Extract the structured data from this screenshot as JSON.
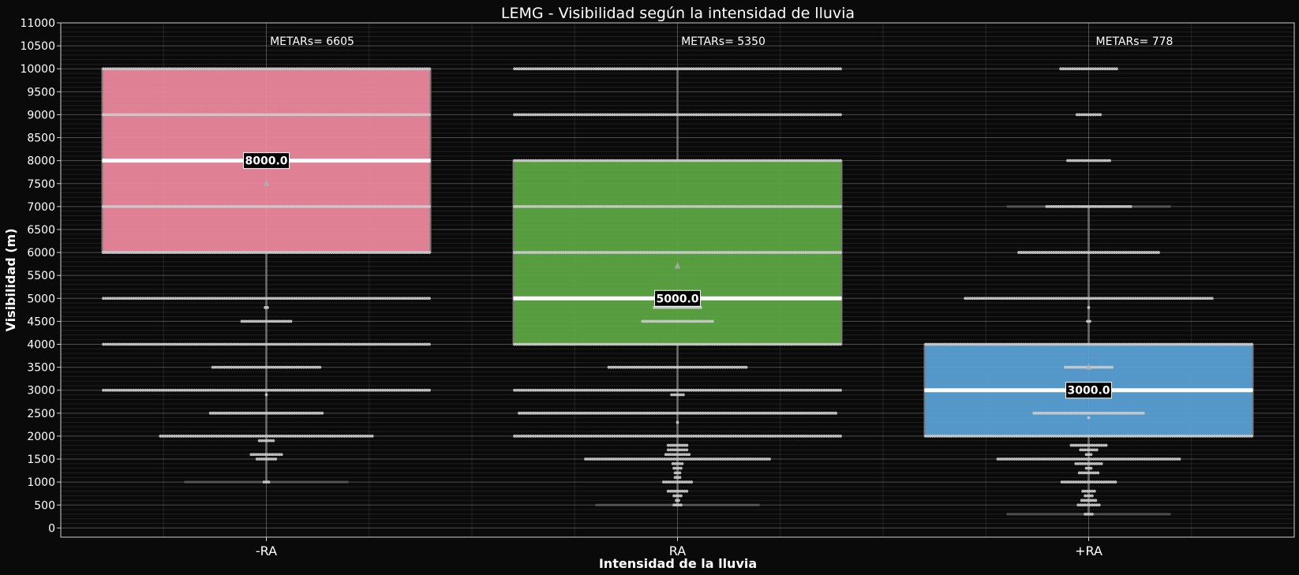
{
  "chart_data": {
    "type": "box",
    "title": "LEMG - Visibilidad según la intensidad de lluvia",
    "xlabel": "Intensidad de la lluvia",
    "ylabel": "Visibilidad (m)",
    "ylim": [
      -200,
      11000
    ],
    "yticks": [
      0,
      500,
      1000,
      1500,
      2000,
      2500,
      3000,
      3500,
      4000,
      4500,
      5000,
      5500,
      6000,
      6500,
      7000,
      7500,
      8000,
      8500,
      9000,
      9500,
      10000,
      10500,
      11000
    ],
    "grid": true,
    "categories": [
      "-RA",
      "RA",
      "+RA"
    ],
    "series": [
      {
        "category": "-RA",
        "color": "#f08aa0",
        "q1": 6000,
        "median": 8000,
        "q3": 10000,
        "whisker_low": 1000,
        "whisker_high": 10000,
        "mean": 7500,
        "median_label": "8000.0",
        "count_label": "METARs= 6605",
        "swarm": [
          {
            "v": 10000,
            "n": 141
          },
          {
            "v": 9000,
            "n": 141
          },
          {
            "v": 8000,
            "n": 141
          },
          {
            "v": 7000,
            "n": 141
          },
          {
            "v": 6000,
            "n": 141
          },
          {
            "v": 5000,
            "n": 141
          },
          {
            "v": 4800,
            "n": 2
          },
          {
            "v": 4500,
            "n": 22
          },
          {
            "v": 4000,
            "n": 141
          },
          {
            "v": 3500,
            "n": 47
          },
          {
            "v": 3000,
            "n": 141
          },
          {
            "v": 2900,
            "n": 1
          },
          {
            "v": 2500,
            "n": 49
          },
          {
            "v": 2000,
            "n": 92
          },
          {
            "v": 1900,
            "n": 7
          },
          {
            "v": 1600,
            "n": 14
          },
          {
            "v": 1500,
            "n": 9
          },
          {
            "v": 1000,
            "n": 3
          }
        ]
      },
      {
        "category": "RA",
        "color": "#5fa845",
        "q1": 4000,
        "median": 5000,
        "q3": 8000,
        "whisker_low": 500,
        "whisker_high": 10000,
        "mean": 5700,
        "median_label": "5000.0",
        "count_label": "METARs= 5350",
        "swarm": [
          {
            "v": 10000,
            "n": 141
          },
          {
            "v": 9000,
            "n": 141
          },
          {
            "v": 8000,
            "n": 141
          },
          {
            "v": 7000,
            "n": 141
          },
          {
            "v": 6000,
            "n": 141
          },
          {
            "v": 5000,
            "n": 141
          },
          {
            "v": 4800,
            "n": 21
          },
          {
            "v": 4500,
            "n": 31
          },
          {
            "v": 4000,
            "n": 141
          },
          {
            "v": 3500,
            "n": 60
          },
          {
            "v": 3000,
            "n": 141
          },
          {
            "v": 2900,
            "n": 6
          },
          {
            "v": 2500,
            "n": 137
          },
          {
            "v": 2300,
            "n": 1
          },
          {
            "v": 2000,
            "n": 141
          },
          {
            "v": 1800,
            "n": 9
          },
          {
            "v": 1700,
            "n": 9
          },
          {
            "v": 1600,
            "n": 11
          },
          {
            "v": 1500,
            "n": 80
          },
          {
            "v": 1400,
            "n": 5
          },
          {
            "v": 1300,
            "n": 4
          },
          {
            "v": 1200,
            "n": 3
          },
          {
            "v": 1100,
            "n": 3
          },
          {
            "v": 1000,
            "n": 13
          },
          {
            "v": 800,
            "n": 9
          },
          {
            "v": 700,
            "n": 4
          },
          {
            "v": 600,
            "n": 2
          },
          {
            "v": 500,
            "n": 4
          }
        ]
      },
      {
        "category": "+RA",
        "color": "#5aa2d8",
        "q1": 2000,
        "median": 3000,
        "q3": 4000,
        "whisker_low": 300,
        "whisker_high": 7000,
        "mean": 3500,
        "median_label": "3000.0",
        "count_label": "METARs= 778",
        "swarm": [
          {
            "v": 10000,
            "n": 25
          },
          {
            "v": 9000,
            "n": 11
          },
          {
            "v": 8000,
            "n": 19
          },
          {
            "v": 7000,
            "n": 37
          },
          {
            "v": 6000,
            "n": 61
          },
          {
            "v": 5000,
            "n": 107
          },
          {
            "v": 4800,
            "n": 1
          },
          {
            "v": 4500,
            "n": 2
          },
          {
            "v": 4000,
            "n": 141
          },
          {
            "v": 3500,
            "n": 21
          },
          {
            "v": 3000,
            "n": 141
          },
          {
            "v": 2500,
            "n": 48
          },
          {
            "v": 2400,
            "n": 1
          },
          {
            "v": 2000,
            "n": 141
          },
          {
            "v": 1800,
            "n": 16
          },
          {
            "v": 1700,
            "n": 8
          },
          {
            "v": 1600,
            "n": 3
          },
          {
            "v": 1500,
            "n": 79
          },
          {
            "v": 1400,
            "n": 12
          },
          {
            "v": 1300,
            "n": 3
          },
          {
            "v": 1200,
            "n": 9
          },
          {
            "v": 1000,
            "n": 24
          },
          {
            "v": 800,
            "n": 6
          },
          {
            "v": 700,
            "n": 4
          },
          {
            "v": 600,
            "n": 7
          },
          {
            "v": 500,
            "n": 10
          },
          {
            "v": 300,
            "n": 4
          }
        ]
      }
    ]
  }
}
